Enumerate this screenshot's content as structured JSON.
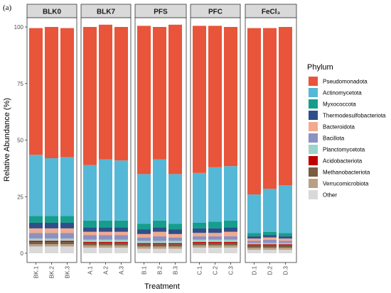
{
  "panel_label": "(a)",
  "chart_data": {
    "type": "bar",
    "stacked": true,
    "ylabel": "Relative Abundance (%)",
    "xlabel": "Treatment",
    "ylim": [
      0,
      100
    ],
    "yticks": [
      0,
      25,
      50,
      75,
      100
    ],
    "legend_title": "Phylum",
    "legend_position": "right",
    "facets": [
      {
        "label": "BLK0",
        "samples": [
          "BK.1",
          "BK.2",
          "BK.3"
        ]
      },
      {
        "label": "BLK7",
        "samples": [
          "A.1",
          "A.2",
          "A.3"
        ]
      },
      {
        "label": "PFS",
        "samples": [
          "B.1",
          "B.2",
          "B.3"
        ]
      },
      {
        "label": "PFC",
        "samples": [
          "C.1",
          "C.2",
          "C.3"
        ]
      },
      {
        "label": "FeCl₃",
        "samples": [
          "D.1",
          "D.2",
          "D.3"
        ]
      }
    ],
    "series": [
      {
        "name": "Other",
        "color": "#d9d9d9",
        "values": [
          3,
          3,
          3,
          2.5,
          2.5,
          2.5,
          2,
          2,
          2,
          2.5,
          2.5,
          2.5,
          1.5,
          1.5,
          1.5
        ]
      },
      {
        "name": "Verrucomicrobiota",
        "color": "#b8a088",
        "values": [
          1,
          1,
          1,
          1,
          1,
          1,
          1,
          1,
          1,
          1,
          1,
          1,
          1,
          1,
          1
        ]
      },
      {
        "name": "Methanobacteriota",
        "color": "#7a5c40",
        "values": [
          1,
          1,
          1,
          1,
          1,
          1,
          1,
          1,
          1,
          1,
          1,
          1,
          1,
          1,
          1
        ]
      },
      {
        "name": "Acidobacteriota",
        "color": "#c00000",
        "values": [
          0.5,
          0.5,
          0.5,
          0.5,
          0.5,
          0.5,
          0.5,
          0.5,
          0.5,
          0.5,
          0.5,
          0.5,
          0.5,
          0.5,
          0.5
        ]
      },
      {
        "name": "Planctomycetota",
        "color": "#9bd4cc",
        "values": [
          1,
          1,
          1,
          1,
          1,
          1,
          1,
          1,
          1,
          1,
          1,
          1,
          0.5,
          0.5,
          0.5
        ]
      },
      {
        "name": "Bacillota",
        "color": "#8e90c0",
        "values": [
          2.5,
          2.5,
          2.5,
          2,
          2,
          2,
          1.5,
          2,
          1.5,
          1.5,
          1.5,
          1.5,
          1,
          1.5,
          1
        ]
      },
      {
        "name": "Bacteroidota",
        "color": "#f2a98e",
        "values": [
          2,
          2,
          2,
          1.5,
          1.5,
          1.5,
          1.5,
          2,
          1.5,
          1.5,
          1.5,
          2,
          1,
          1,
          1
        ]
      },
      {
        "name": "Thermodesulfobacteriota",
        "color": "#2f4f8a",
        "values": [
          2.5,
          2.5,
          2.5,
          2,
          2,
          2,
          2,
          2,
          2,
          2,
          2,
          2,
          1,
          1,
          1
        ]
      },
      {
        "name": "Myxococcota",
        "color": "#169e8c",
        "values": [
          3,
          3,
          3,
          3,
          3,
          3,
          2.5,
          3,
          2.5,
          2.5,
          3,
          3,
          1.5,
          1.5,
          1.5
        ]
      },
      {
        "name": "Actinomycetota",
        "color": "#55b8d6",
        "values": [
          27,
          25.5,
          26,
          24.5,
          27,
          26.5,
          22,
          27,
          22,
          22,
          24,
          24,
          17,
          19,
          21
        ]
      },
      {
        "name": "Pseudomonadota",
        "color": "#e8553a",
        "values": [
          56,
          58,
          57,
          61,
          59.5,
          59,
          65.5,
          58.5,
          66,
          65,
          62.5,
          61.5,
          73.5,
          71,
          70
        ]
      }
    ]
  }
}
